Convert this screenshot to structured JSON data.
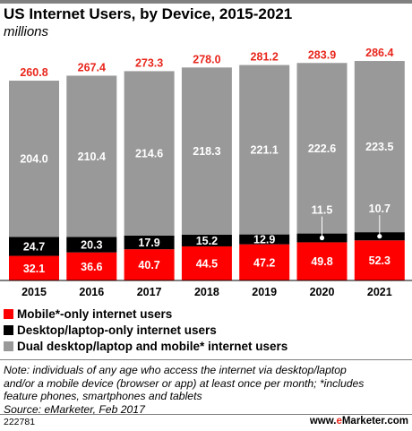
{
  "title": "US Internet Users, by Device, 2015-2021",
  "subtitle": "millions",
  "colors": {
    "mobile": "#ff0000",
    "desktop": "#000000",
    "dual": "#999999",
    "total_label": "#e8261c"
  },
  "chart_data": {
    "type": "bar",
    "stacked": true,
    "categories": [
      "2015",
      "2016",
      "2017",
      "2018",
      "2019",
      "2020",
      "2021"
    ],
    "series": [
      {
        "name": "Mobile*-only internet users",
        "values": [
          32.1,
          36.6,
          40.7,
          44.5,
          47.2,
          49.8,
          52.3
        ],
        "labels": [
          "32.1",
          "36.6",
          "40.7",
          "44.5",
          "47.2",
          "49.8",
          "52.3"
        ]
      },
      {
        "name": "Desktop/laptop-only internet users",
        "values": [
          24.7,
          20.3,
          17.9,
          15.2,
          12.9,
          11.5,
          10.7
        ],
        "labels": [
          "24.7",
          "20.3",
          "17.9",
          "15.2",
          "12.9",
          "11.5",
          "10.7"
        ]
      },
      {
        "name": "Dual desktop/laptop and mobile* internet users",
        "values": [
          204.0,
          210.4,
          214.6,
          218.3,
          221.1,
          222.6,
          223.5
        ],
        "labels": [
          "204.0",
          "210.4",
          "214.6",
          "218.3",
          "221.1",
          "222.6",
          "223.5"
        ]
      }
    ],
    "totals": [
      "260.8",
      "267.4",
      "273.3",
      "278.0",
      "281.2",
      "283.9",
      "286.4"
    ],
    "legend_position": "bottom-left"
  },
  "legend": {
    "mobile": "Mobile*-only internet users",
    "desktop": "Desktop/laptop-only internet users",
    "dual": "Dual desktop/laptop and mobile* internet users"
  },
  "note": {
    "line1": "Note: individuals of any age who access the internet via desktop/laptop",
    "line2": "and/or a mobile device (browser or app) at least once per month; *includes",
    "line3": "feature phones, smartphones and tablets",
    "source": "Source: eMarketer, Feb 2017"
  },
  "footer": {
    "id": "222781",
    "brand_prefix": "www.",
    "brand_accent": "e",
    "brand_suffix": "Marketer.com"
  }
}
